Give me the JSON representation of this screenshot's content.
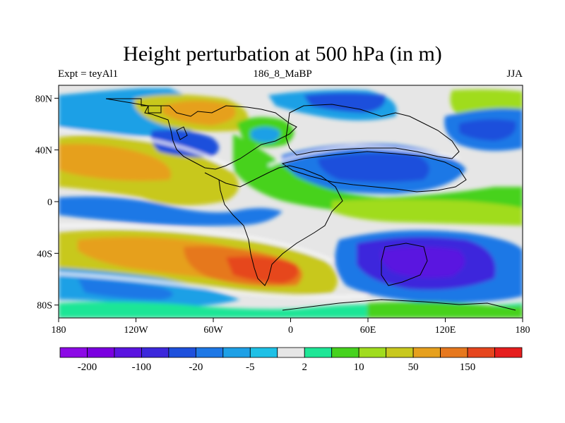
{
  "title": "Height perturbation at 500 hPa (in m)",
  "subtitle_left": "Expt = teyAl1",
  "subtitle_center": "186_8_MaBP",
  "subtitle_right": "JJA",
  "lat_ticks": [
    {
      "value": 80,
      "label": "80N"
    },
    {
      "value": 40,
      "label": "40N"
    },
    {
      "value": 0,
      "label": "0"
    },
    {
      "value": -40,
      "label": "40S"
    },
    {
      "value": -80,
      "label": "80S"
    }
  ],
  "lon_ticks": [
    {
      "value": -180,
      "label": "180"
    },
    {
      "value": -120,
      "label": "120W"
    },
    {
      "value": -60,
      "label": "60W"
    },
    {
      "value": 0,
      "label": "0"
    },
    {
      "value": 60,
      "label": "60E"
    },
    {
      "value": 120,
      "label": "120E"
    },
    {
      "value": 180,
      "label": "180"
    }
  ],
  "colorbar": {
    "colors": [
      "#8c0ae6",
      "#7a00e0",
      "#5a14e0",
      "#3c28dc",
      "#1e50dc",
      "#1e78e6",
      "#1ea0e6",
      "#1ec0e6",
      "#e6e6e6",
      "#1ee696",
      "#46d21e",
      "#a0dc1e",
      "#c8c81e",
      "#e6a01e",
      "#e6781e",
      "#e6461e",
      "#e61e1e"
    ],
    "labels": [
      {
        "after_box": 1,
        "text": "-200"
      },
      {
        "after_box": 3,
        "text": "-100"
      },
      {
        "after_box": 5,
        "text": "-20"
      },
      {
        "after_box": 7,
        "text": "-5"
      },
      {
        "after_box": 9,
        "text": "2"
      },
      {
        "after_box": 11,
        "text": "10"
      },
      {
        "after_box": 13,
        "text": "50"
      },
      {
        "after_box": 15,
        "text": "150"
      }
    ]
  }
}
